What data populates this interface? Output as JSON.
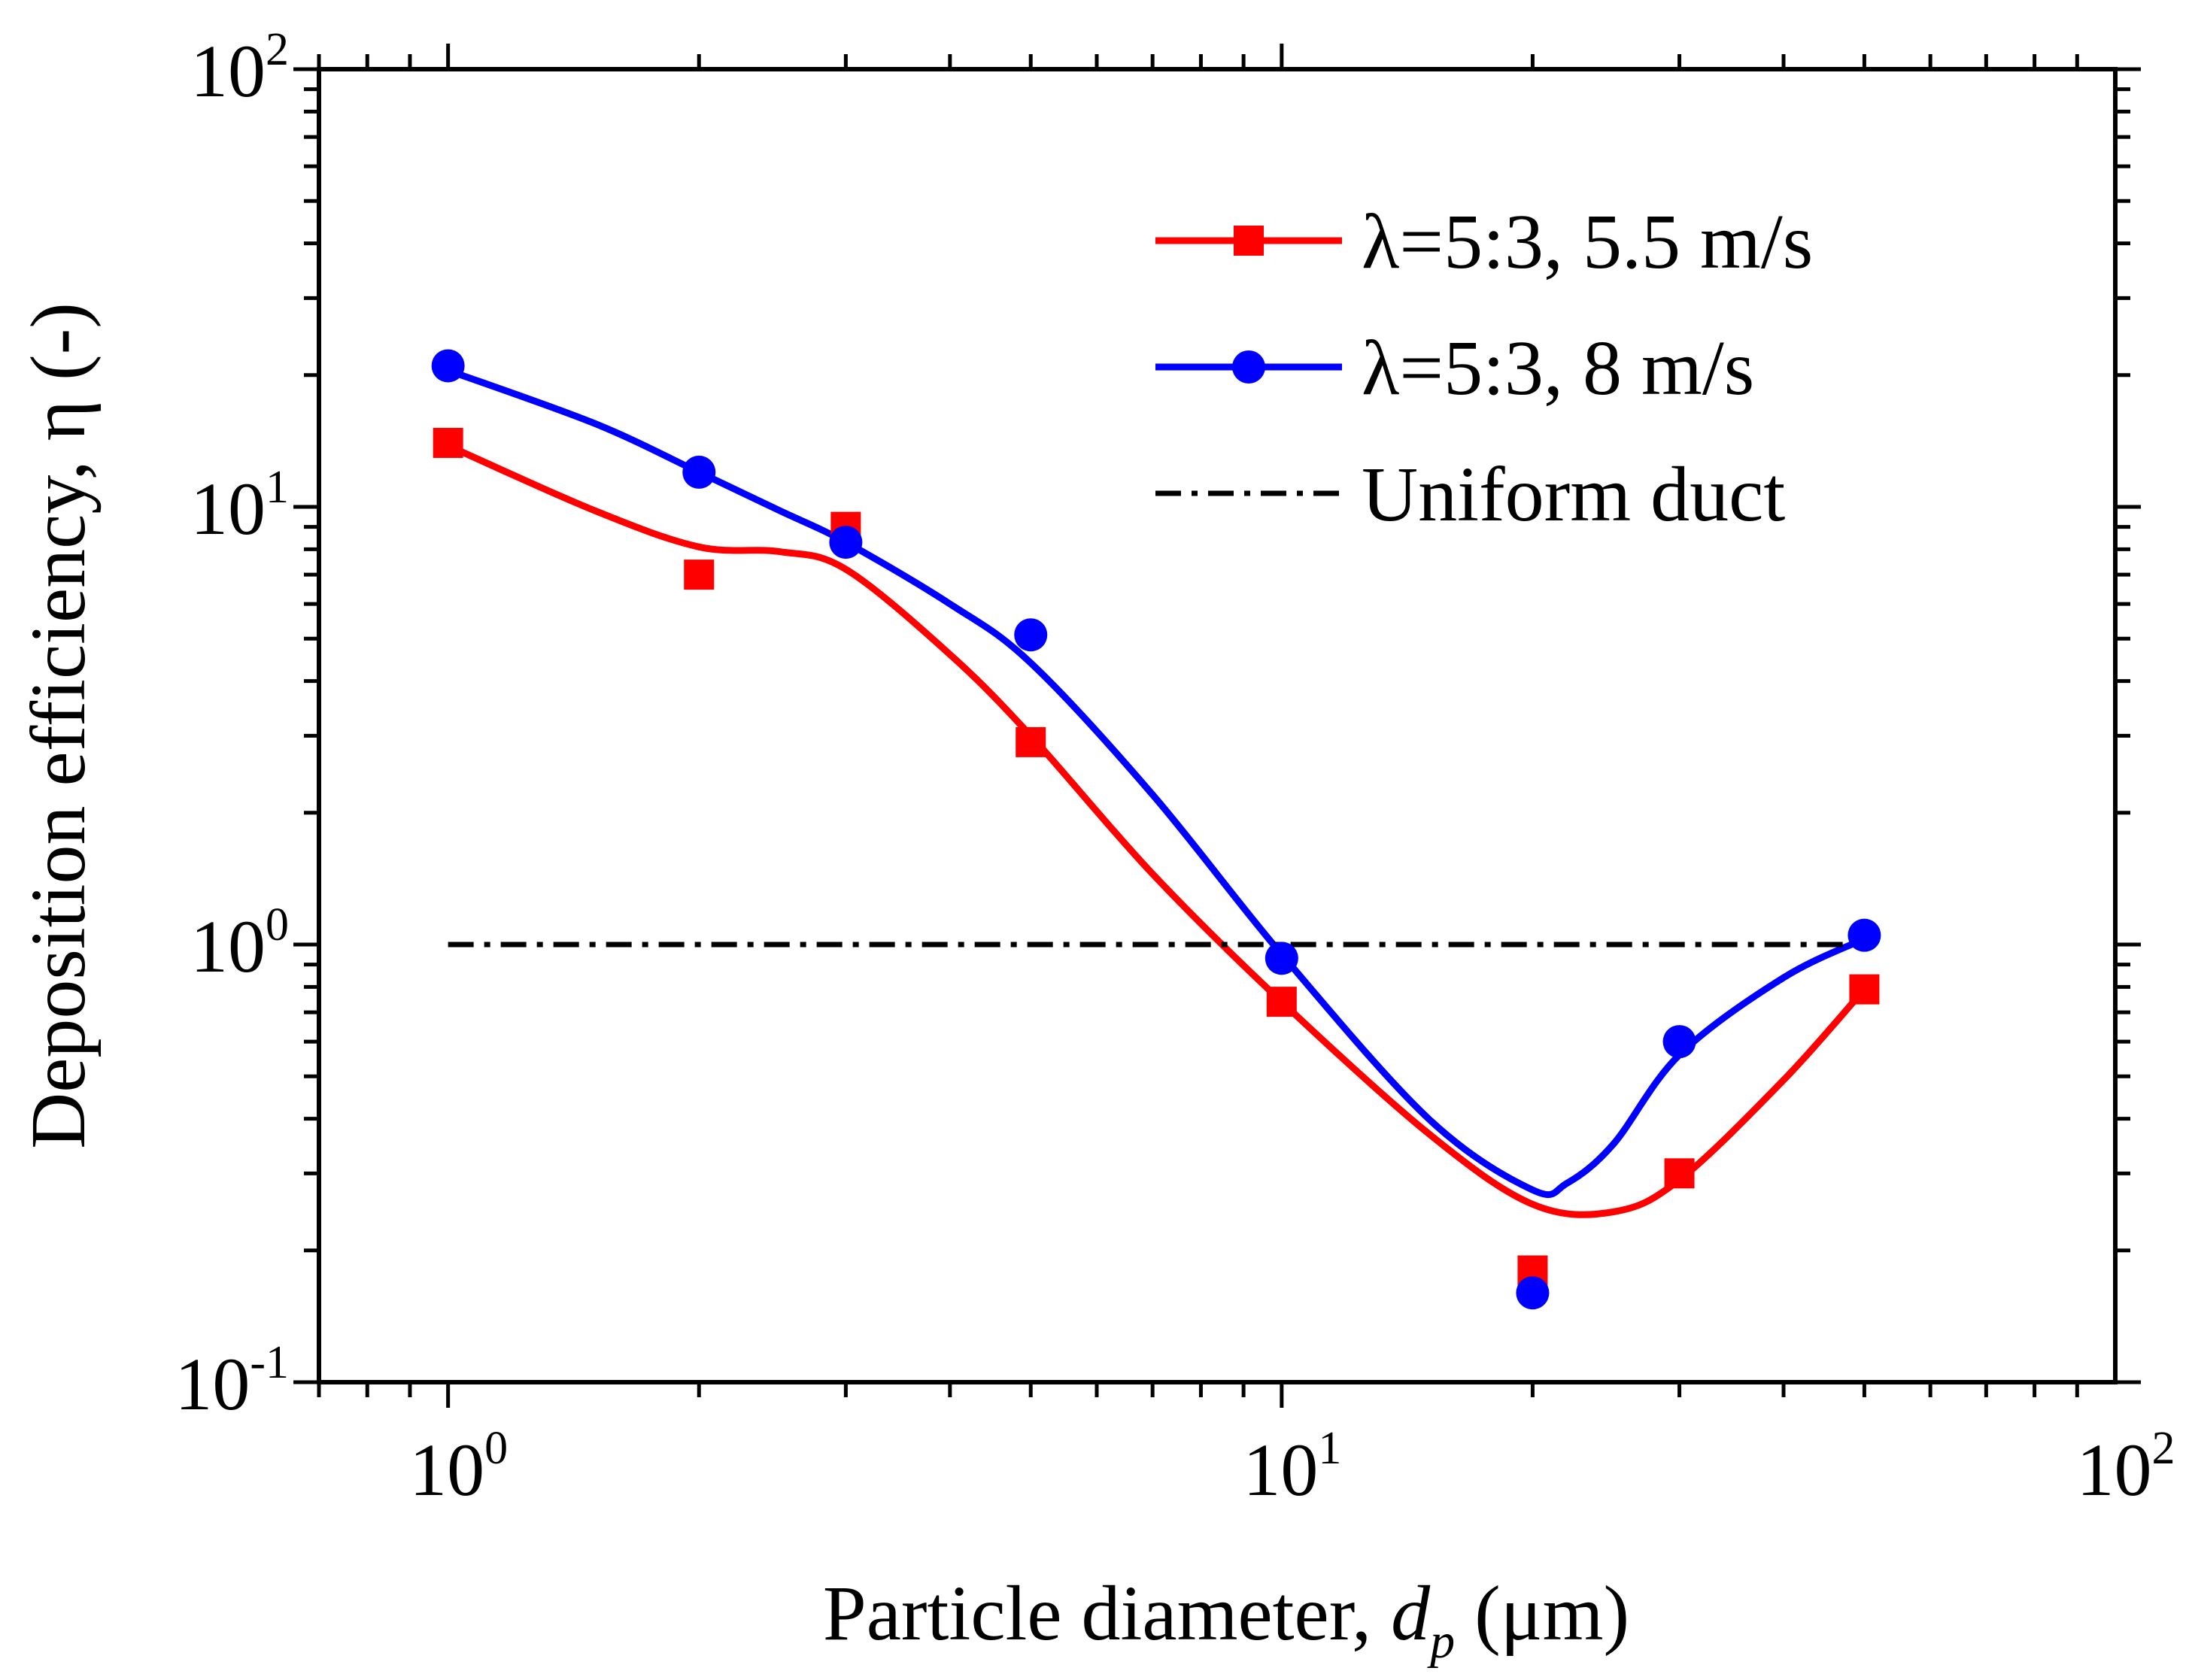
{
  "chart_data": {
    "type": "scatter",
    "title": "",
    "xlabel": "Particle diameter, d_p (μm)",
    "xlabel_parts": {
      "main": "Particle diameter, ",
      "italic": "d",
      "subscript": "p",
      "suffix": " (μm)"
    },
    "ylabel": "Deposition efficiency, η (-)",
    "xscale": "log",
    "yscale": "log",
    "xlim": [
      0.7,
      100
    ],
    "ylim": [
      0.1,
      100
    ],
    "x_ticks": [
      {
        "base": "10",
        "exp": "0",
        "value": 1
      },
      {
        "base": "10",
        "exp": "1",
        "value": 10
      },
      {
        "base": "10",
        "exp": "2",
        "value": 100
      }
    ],
    "y_ticks": [
      {
        "base": "10",
        "exp": "-1",
        "value": 0.1
      },
      {
        "base": "10",
        "exp": "0",
        "value": 1
      },
      {
        "base": "10",
        "exp": "1",
        "value": 10
      },
      {
        "base": "10",
        "exp": "2",
        "value": 100
      }
    ],
    "grid": false,
    "legend_position": "top-right",
    "series": [
      {
        "name": "λ=5:3, 5.5 m/s",
        "color": "#ff0000",
        "marker": "square",
        "x": [
          1,
          2,
          3,
          5,
          10,
          20,
          30,
          50
        ],
        "y": [
          14,
          7,
          9,
          2.9,
          0.74,
          0.18,
          0.3,
          0.79
        ],
        "curve": {
          "x": [
            1,
            1.5,
            2,
            2.5,
            3,
            4,
            5,
            7,
            10,
            15,
            20,
            25,
            30,
            40,
            50
          ],
          "y": [
            13.8,
            9.8,
            8.1,
            7.9,
            7.2,
            4.6,
            3.0,
            1.45,
            0.74,
            0.37,
            0.255,
            0.245,
            0.29,
            0.49,
            0.79
          ]
        }
      },
      {
        "name": "λ=5:3, 8 m/s",
        "color": "#0000ff",
        "marker": "circle",
        "x": [
          1,
          2,
          3,
          5,
          10,
          20,
          30,
          50
        ],
        "y": [
          21,
          12,
          8.3,
          5.1,
          0.93,
          0.16,
          0.6,
          1.05
        ],
        "curve": {
          "x": [
            1,
            1.5,
            2,
            2.5,
            3,
            4,
            5,
            7,
            10,
            15,
            20,
            22,
            25,
            30,
            40,
            50
          ],
          "y": [
            20.5,
            15.5,
            12.0,
            9.8,
            8.3,
            6.0,
            4.4,
            2.2,
            0.95,
            0.4,
            0.275,
            0.285,
            0.35,
            0.56,
            0.84,
            1.03
          ]
        }
      },
      {
        "name": "Uniform duct",
        "color": "#000000",
        "style": "dash-dot",
        "x": [
          1,
          50
        ],
        "y": [
          1,
          1
        ]
      }
    ]
  }
}
